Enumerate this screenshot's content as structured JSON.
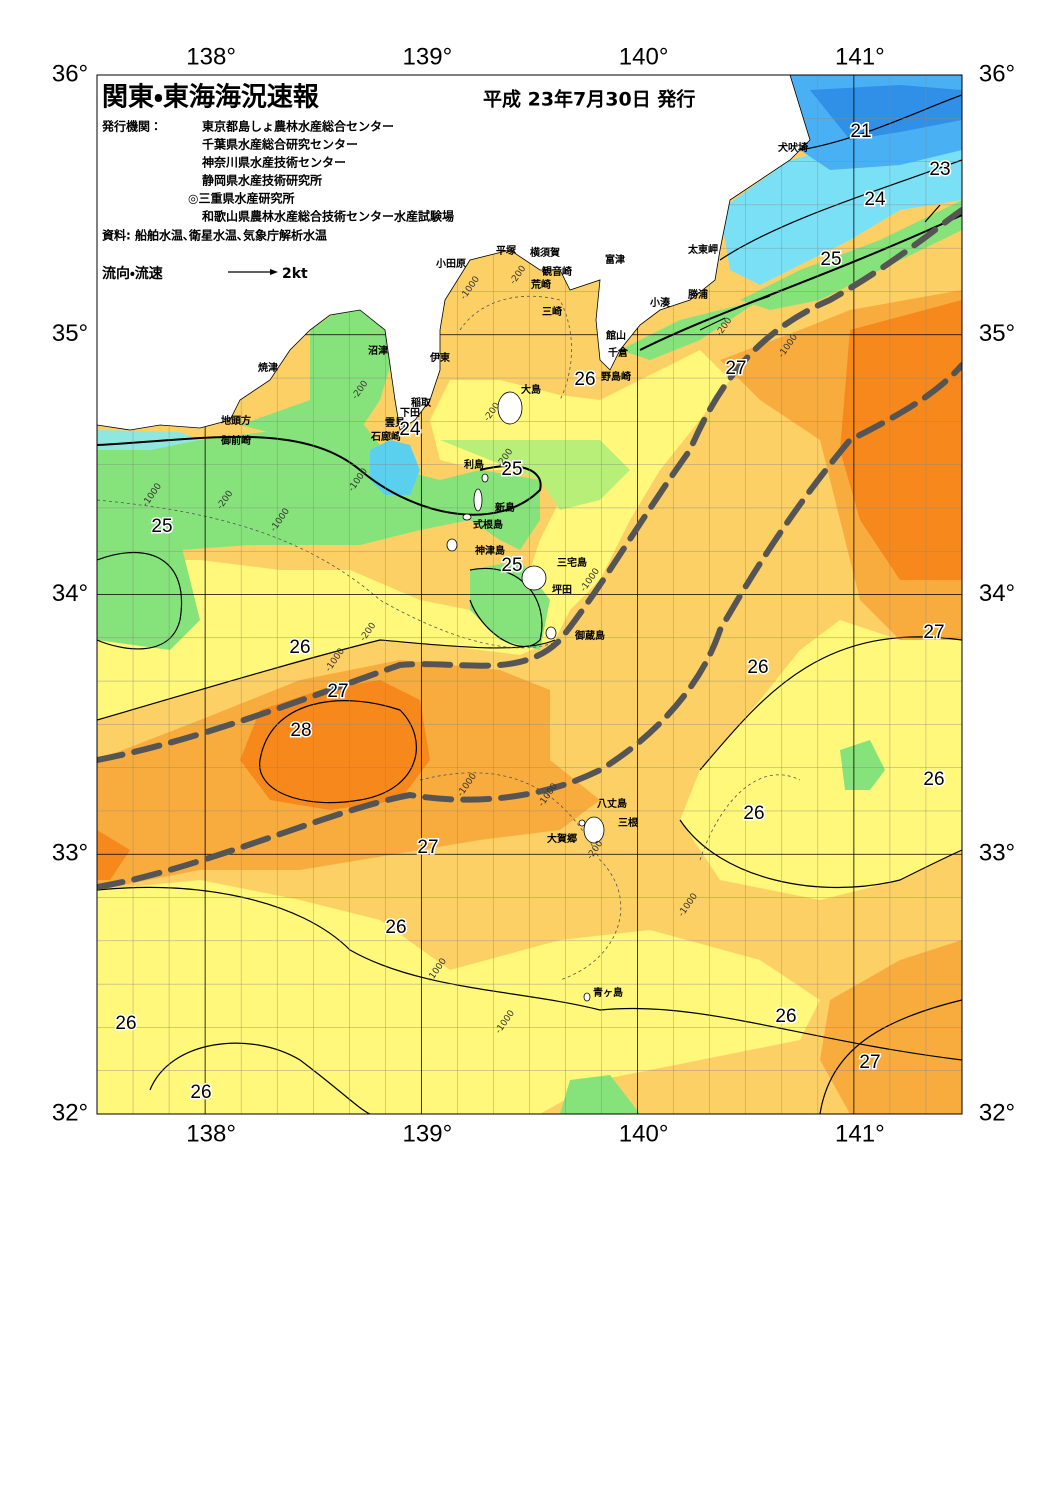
{
  "header": {
    "title": "関東・東海海況速報",
    "date": "平成 23年7月30日 発行",
    "issuer_label": "発行機関：",
    "issuers": [
      "東京都島しょ農林水産総合センター",
      "千葉県水産総合研究センター",
      "神奈川県水産技術センター",
      "静岡県水産技術研究所",
      "◎三重県水産研究所",
      "和歌山県農林水産総合技術センター水産試験場"
    ],
    "source": "資料: 船舶水温､衛星水温､気象庁解析水温",
    "legend_label": "流向・流速",
    "legend_scale": "2kt"
  },
  "axes": {
    "lon_ticks": [
      {
        "value": 138,
        "label": "138°"
      },
      {
        "value": 139,
        "label": "139°"
      },
      {
        "value": 140,
        "label": "140°"
      },
      {
        "value": 141,
        "label": "141°"
      }
    ],
    "lat_ticks": [
      {
        "value": 36,
        "label": "36°"
      },
      {
        "value": 35,
        "label": "35°"
      },
      {
        "value": 34,
        "label": "34°"
      },
      {
        "value": 33,
        "label": "33°"
      },
      {
        "value": 32,
        "label": "32°"
      }
    ]
  },
  "places": [
    "犬吠埼",
    "太東岬",
    "勝浦",
    "小湊",
    "館山",
    "千倉",
    "野島崎",
    "富津",
    "横須賀",
    "観音崎",
    "荒崎",
    "三崎",
    "平塚",
    "小田原",
    "沼津",
    "伊東",
    "焼津",
    "稲取",
    "下田",
    "雲見",
    "石廊崎",
    "地頭方",
    "御前崎",
    "大島",
    "利島",
    "新島",
    "式根島",
    "神津島",
    "三宅島",
    "坪田",
    "御蔵島",
    "八丈島",
    "三根",
    "大賀郷",
    "青ヶ島"
  ],
  "temperature_labels": [
    21,
    23,
    24,
    25,
    27,
    26,
    24,
    25,
    25,
    25,
    26,
    27,
    28,
    26,
    27,
    26,
    26,
    27,
    26,
    26,
    26,
    27,
    26
  ],
  "depth_labels": [
    -200,
    -1000,
    -200,
    -200,
    -1000,
    -200,
    -1000,
    -1000,
    -200,
    -1000,
    -200,
    -1000,
    -1000,
    -1000,
    -200,
    -1000,
    -1000,
    -1000,
    -200,
    -1000
  ]
}
